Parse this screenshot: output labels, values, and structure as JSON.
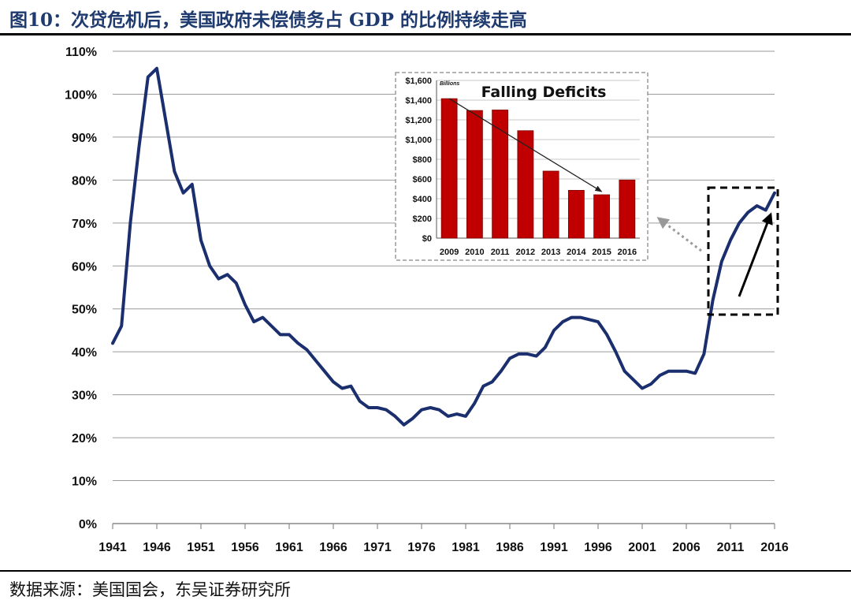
{
  "title": "图10：次贷危机后，美国政府未偿债务占 GDP 的比例持续走高",
  "source": "数据来源：美国国会，东吴证券研究所",
  "colors": {
    "line": "#1b2f6e",
    "bar": "#c00000",
    "title": "#1e3a6e"
  },
  "chart_data": [
    {
      "type": "line",
      "x_ticks": [
        "1941",
        "1946",
        "1951",
        "1956",
        "1961",
        "1966",
        "1971",
        "1976",
        "1981",
        "1986",
        "1991",
        "1996",
        "2001",
        "2006",
        "2011",
        "2016"
      ],
      "y_ticks": [
        "0%",
        "10%",
        "20%",
        "30%",
        "40%",
        "50%",
        "60%",
        "70%",
        "80%",
        "90%",
        "100%",
        "110%"
      ],
      "ylim": [
        0,
        110
      ],
      "xlim": [
        1941,
        2016
      ],
      "grid": true,
      "series": [
        {
          "x": [
            1941,
            1942,
            1943,
            1944,
            1945,
            1946,
            1947,
            1948,
            1949,
            1950,
            1951,
            1952,
            1953,
            1954,
            1955,
            1956,
            1957,
            1958,
            1959,
            1960,
            1961,
            1962,
            1963,
            1964,
            1965,
            1966,
            1967,
            1968,
            1969,
            1970,
            1971,
            1972,
            1973,
            1974,
            1975,
            1976,
            1977,
            1978,
            1979,
            1980,
            1981,
            1982,
            1983,
            1984,
            1985,
            1986,
            1987,
            1988,
            1989,
            1990,
            1991,
            1992,
            1993,
            1994,
            1995,
            1996,
            1997,
            1998,
            1999,
            2000,
            2001,
            2002,
            2003,
            2004,
            2005,
            2006,
            2007,
            2008,
            2009,
            2010,
            2011,
            2012,
            2013,
            2014,
            2015,
            2016
          ],
          "values": [
            42,
            46,
            70,
            88,
            104,
            106,
            94,
            82,
            77,
            79,
            66,
            60,
            57,
            58,
            56,
            51,
            47,
            48,
            46,
            44,
            44,
            42,
            40.5,
            38,
            35.5,
            33,
            31.5,
            32,
            28.5,
            27,
            27,
            26.5,
            25,
            23,
            24.5,
            26.5,
            27,
            26.5,
            25,
            25.5,
            25,
            28,
            32,
            33,
            35.5,
            38.5,
            39.5,
            39.5,
            39,
            41,
            45,
            47,
            48,
            48,
            47.5,
            47,
            44,
            40,
            35.5,
            33.5,
            31.5,
            32.5,
            34.5,
            35.5,
            35.5,
            35.5,
            35,
            39.5,
            52,
            61,
            66,
            70,
            72.5,
            74,
            73,
            77
          ]
        }
      ],
      "annotations": [
        "dashed box 2009–2016",
        "dotted arrow toward inset",
        "solid arrow showing upward trend"
      ]
    },
    {
      "type": "bar",
      "title": "Falling Deficits",
      "unit_label": "Billions",
      "categories": [
        "2009",
        "2010",
        "2011",
        "2012",
        "2013",
        "2014",
        "2015",
        "2016"
      ],
      "values": [
        1415,
        1295,
        1300,
        1090,
        680,
        485,
        440,
        590
      ],
      "ylim": [
        0,
        1600
      ],
      "y_ticks": [
        "$0",
        "$200",
        "$400",
        "$600",
        "$800",
        "$1,000",
        "$1,200",
        "$1,400",
        "$1,600"
      ],
      "annotations": [
        "trend arrow from 2009 to 2015"
      ]
    }
  ]
}
